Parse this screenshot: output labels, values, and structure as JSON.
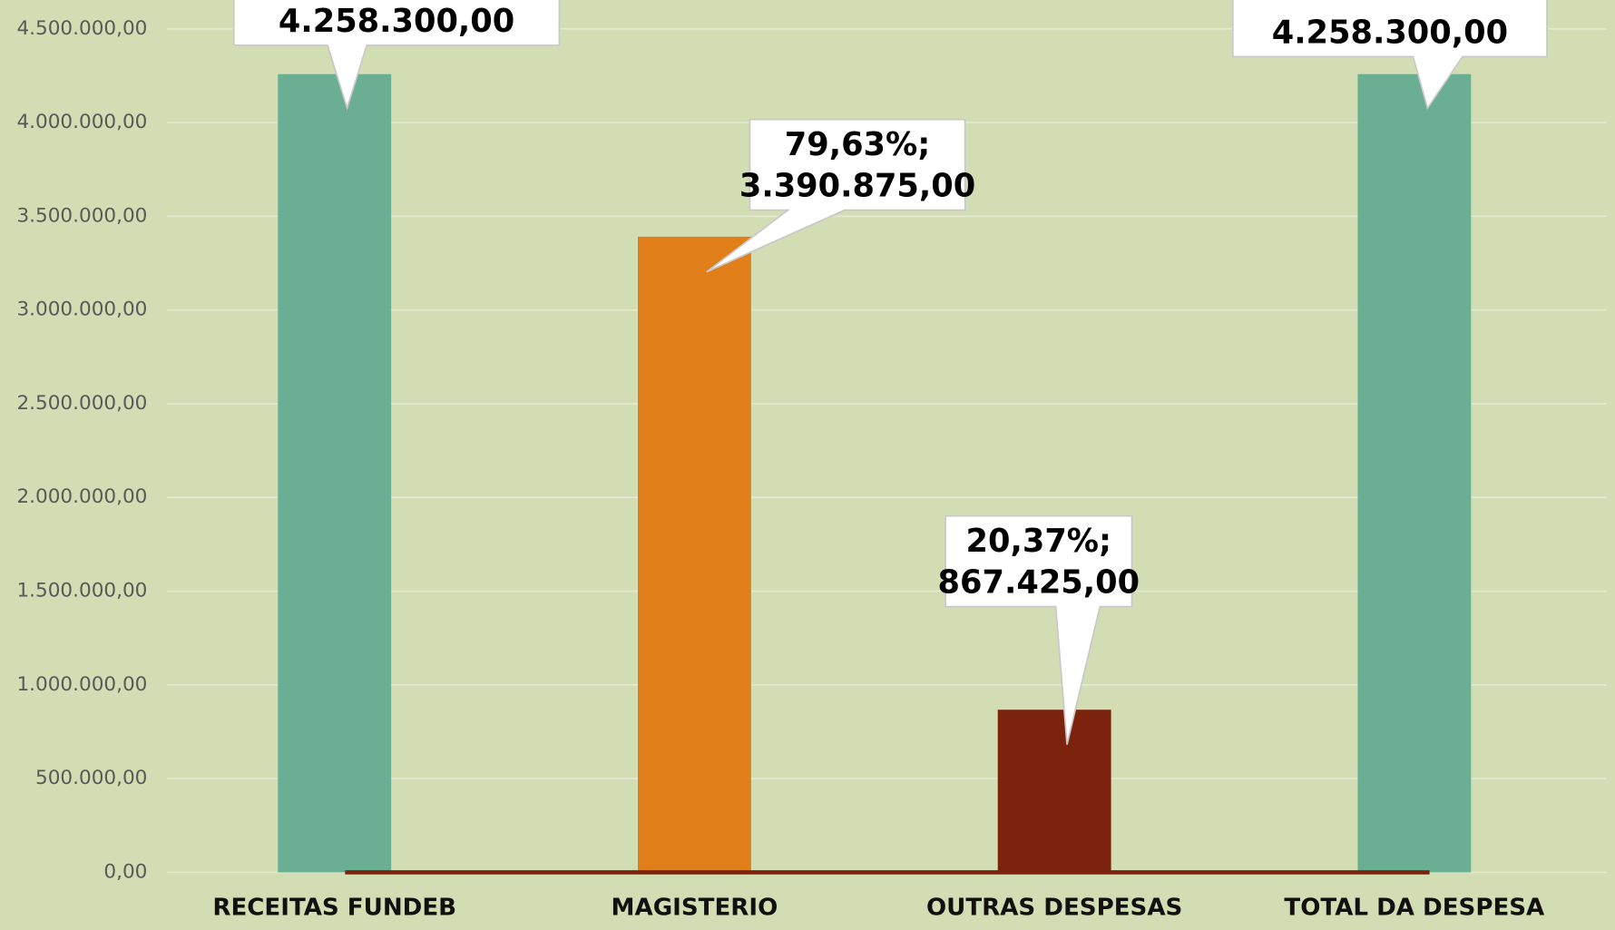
{
  "chart_data": {
    "type": "bar",
    "categories": [
      "RECEITAS FUNDEB",
      "MAGISTERIO",
      "OUTRAS DESPESAS",
      "TOTAL DA DESPESA"
    ],
    "values": [
      4258300,
      3390875,
      867425,
      4258300
    ],
    "value_labels": [
      [
        "4.258.300,00"
      ],
      [
        "79,63%;",
        "3.390.875,00"
      ],
      [
        "20,37%;",
        "867.425,00"
      ],
      [
        "4.258.300,00"
      ]
    ],
    "colors": [
      "#6aae93",
      "#e07e19",
      "#7b230d",
      "#6aae93"
    ],
    "ylim": [
      0,
      4500000
    ],
    "yticks": [
      {
        "value": 0,
        "label": "0,00"
      },
      {
        "value": 500000,
        "label": "500.000,00"
      },
      {
        "value": 1000000,
        "label": "1.000.000,00"
      },
      {
        "value": 1500000,
        "label": "1.500.000,00"
      },
      {
        "value": 2000000,
        "label": "2.000.000,00"
      },
      {
        "value": 2500000,
        "label": "2.500.000,00"
      },
      {
        "value": 3000000,
        "label": "3.000.000,00"
      },
      {
        "value": 3500000,
        "label": "3.500.000,00"
      },
      {
        "value": 4000000,
        "label": "4.000.000,00"
      },
      {
        "value": 4500000,
        "label": "4.500.000,00"
      }
    ],
    "grid": true
  }
}
